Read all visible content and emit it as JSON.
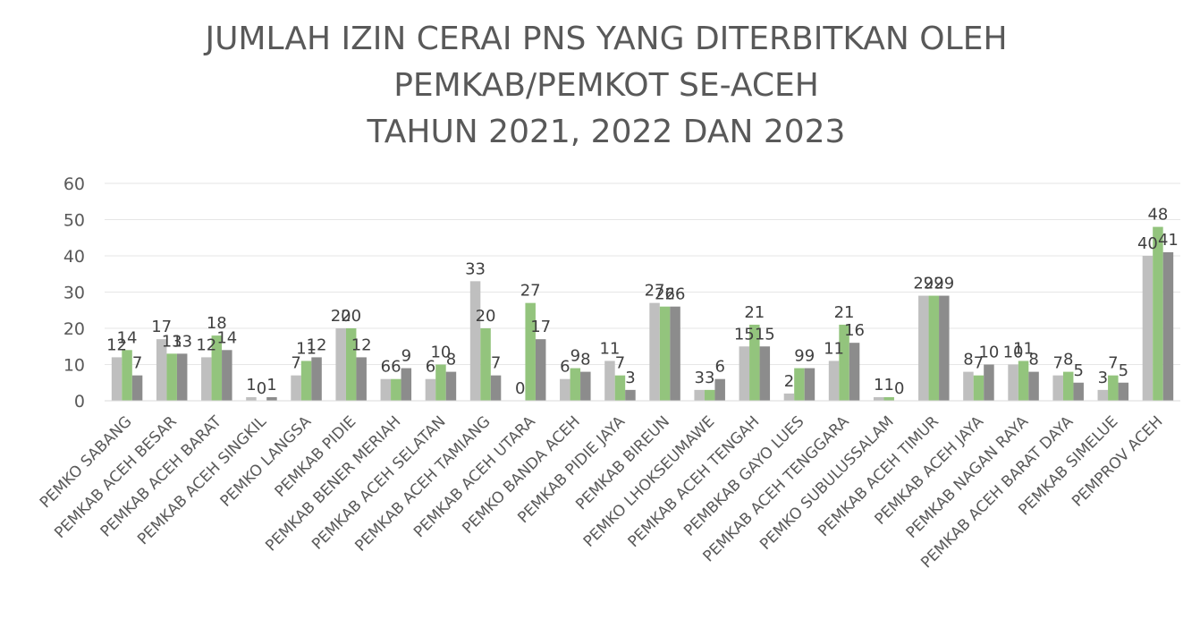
{
  "chart_data": {
    "type": "bar",
    "title_lines": [
      "JUMLAH IZIN CERAI PNS YANG DITERBITKAN OLEH",
      "PEMKAB/PEMKOT SE-ACEH",
      "TAHUN 2021, 2022 DAN 2023"
    ],
    "categories": [
      "PEMKO SABANG",
      "PEMKAB ACEH BESAR",
      "PEMKAB ACEH BARAT",
      "PEMKAB ACEH SINGKIL",
      "PEMKO LANGSA",
      "PEMKAB PIDIE",
      "PEMKAB BENER MERIAH",
      "PEMKAB ACEH SELATAN",
      "PEMKAB ACEH TAMIANG",
      "PEMKAB ACEH UTARA",
      "PEMKO BANDA ACEH",
      "PEMKAB PIDIE JAYA",
      "PEMKAB BIREUN",
      "PEMKO LHOKSEUMAWE",
      "PEMKAB ACEH TENGAH",
      "PEMBKAB GAYO LUES",
      "PEMKAB ACEH TENGGARA",
      "PEMKO SUBULUSSALAM",
      "PEMKAB ACEH TIMUR",
      "PEMKAB ACEH JAYA",
      "PEMKAB NAGAN RAYA",
      "PEMKAB ACEH BARAT DAYA",
      "PEMKAB SIMELUE",
      "PEMPROV ACEH"
    ],
    "series": [
      {
        "color": "#bfbfbf",
        "values": [
          12,
          17,
          12,
          1,
          7,
          20,
          6,
          6,
          33,
          0,
          6,
          11,
          27,
          3,
          15,
          2,
          11,
          1,
          29,
          8,
          10,
          7,
          3,
          40
        ]
      },
      {
        "color": "#93c47d",
        "values": [
          14,
          13,
          18,
          0,
          11,
          20,
          6,
          10,
          20,
          27,
          9,
          7,
          26,
          3,
          21,
          9,
          21,
          1,
          29,
          7,
          11,
          8,
          7,
          48
        ]
      },
      {
        "color": "#8c8c8c",
        "values": [
          7,
          13,
          14,
          1,
          12,
          12,
          9,
          8,
          7,
          17,
          8,
          3,
          26,
          6,
          15,
          9,
          16,
          0,
          29,
          10,
          8,
          5,
          5,
          41
        ]
      }
    ],
    "ylim": [
      0,
      60
    ],
    "yticks": [
      "0",
      "10",
      "20",
      "30",
      "40",
      "50",
      "60"
    ],
    "grid": true,
    "legend": "none"
  }
}
